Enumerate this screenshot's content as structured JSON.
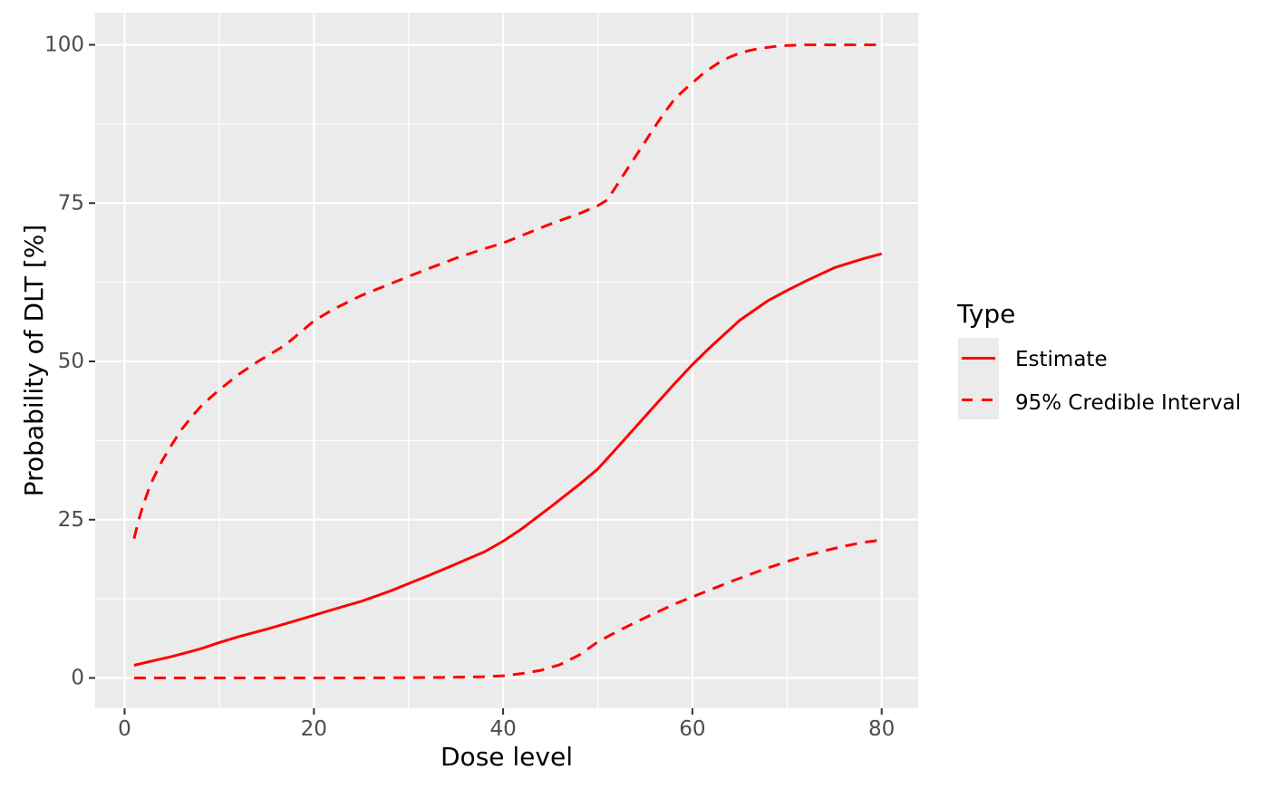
{
  "theme": {
    "background": "#FFFFFF",
    "panel_background": "#EBEBEB",
    "grid_color": "#FFFFFF",
    "tick_label_color": "#4D4D4D",
    "tick_mark_color": "#333333",
    "axis_title_color": "#000000",
    "legend_key_background": "#EBEBEB",
    "line_color": "#FF0000"
  },
  "chart_data": {
    "type": "line",
    "title": "",
    "xlabel": "Dose level",
    "ylabel": "Probability of DLT [%]",
    "xlim": [
      -3.11,
      83.86
    ],
    "ylim": [
      -4.79,
      105.08
    ],
    "x_ticks": {
      "values": [
        0,
        20,
        40,
        60,
        80
      ],
      "labels": [
        "0",
        "20",
        "40",
        "60",
        "80"
      ]
    },
    "y_ticks": {
      "values": [
        0,
        25,
        50,
        75,
        100
      ],
      "labels": [
        "0",
        "25",
        "50",
        "75",
        "100"
      ]
    },
    "x_minor": [
      10,
      30,
      50,
      70
    ],
    "y_minor": [
      12.5,
      37.5,
      62.5,
      87.5
    ],
    "grid": "white major and minor gridlines on gray panel",
    "legend": {
      "title": "Type",
      "position": "right-center",
      "entries": [
        {
          "label": "Estimate",
          "linestyle": "solid",
          "color": "#FF0000"
        },
        {
          "label": "95% Credible Interval",
          "linestyle": "dashed",
          "color": "#FF0000"
        }
      ]
    },
    "series": [
      {
        "name": "Estimate",
        "linestyle": "solid",
        "color": "#FF0000",
        "points": [
          [
            1,
            2.0
          ],
          [
            3,
            2.7
          ],
          [
            5,
            3.4
          ],
          [
            8,
            4.6
          ],
          [
            10,
            5.6
          ],
          [
            12,
            6.5
          ],
          [
            15,
            7.7
          ],
          [
            18,
            9.0
          ],
          [
            20,
            9.9
          ],
          [
            22,
            10.8
          ],
          [
            25,
            12.1
          ],
          [
            28,
            13.7
          ],
          [
            30,
            14.9
          ],
          [
            32,
            16.1
          ],
          [
            35,
            18.0
          ],
          [
            38,
            19.9
          ],
          [
            40,
            21.6
          ],
          [
            42,
            23.6
          ],
          [
            45,
            27.0
          ],
          [
            48,
            30.5
          ],
          [
            50,
            33.0
          ],
          [
            52,
            36.3
          ],
          [
            55,
            41.3
          ],
          [
            58,
            46.3
          ],
          [
            60,
            49.5
          ],
          [
            62,
            52.4
          ],
          [
            65,
            56.5
          ],
          [
            68,
            59.6
          ],
          [
            70,
            61.2
          ],
          [
            72,
            62.7
          ],
          [
            75,
            64.8
          ],
          [
            78,
            66.2
          ],
          [
            80,
            67.0
          ]
        ]
      },
      {
        "name": "95% Credible Interval (upper)",
        "linestyle": "dashed",
        "color": "#FF0000",
        "points": [
          [
            1,
            22.0
          ],
          [
            1.5,
            25.0
          ],
          [
            2,
            27.5
          ],
          [
            2.5,
            29.6
          ],
          [
            3,
            31.4
          ],
          [
            4,
            34.4
          ],
          [
            5,
            36.9
          ],
          [
            6,
            39.2
          ],
          [
            7,
            41.1
          ],
          [
            8,
            42.8
          ],
          [
            9,
            44.2
          ],
          [
            10,
            45.5
          ],
          [
            12,
            47.9
          ],
          [
            14,
            49.9
          ],
          [
            15,
            50.8
          ],
          [
            17,
            52.6
          ],
          [
            20,
            56.4
          ],
          [
            22,
            58.2
          ],
          [
            25,
            60.4
          ],
          [
            28,
            62.2
          ],
          [
            30,
            63.4
          ],
          [
            32,
            64.6
          ],
          [
            35,
            66.3
          ],
          [
            38,
            67.8
          ],
          [
            40,
            68.7
          ],
          [
            42,
            69.9
          ],
          [
            45,
            71.7
          ],
          [
            48,
            73.3
          ],
          [
            50,
            74.6
          ],
          [
            51,
            75.5
          ],
          [
            52,
            77.8
          ],
          [
            53,
            80.1
          ],
          [
            54,
            82.4
          ],
          [
            55,
            84.7
          ],
          [
            56,
            87.0
          ],
          [
            57,
            89.2
          ],
          [
            58,
            91.2
          ],
          [
            59,
            92.7
          ],
          [
            60,
            94.0
          ],
          [
            61,
            95.3
          ],
          [
            62,
            96.4
          ],
          [
            63,
            97.4
          ],
          [
            64,
            98.1
          ],
          [
            65,
            98.7
          ],
          [
            66,
            99.1
          ],
          [
            67,
            99.4
          ],
          [
            68,
            99.6
          ],
          [
            69,
            99.8
          ],
          [
            70,
            99.9
          ],
          [
            72,
            100.0
          ],
          [
            75,
            100.0
          ],
          [
            80,
            100.0
          ]
        ]
      },
      {
        "name": "95% Credible Interval (lower)",
        "linestyle": "dashed",
        "color": "#FF0000",
        "points": [
          [
            1,
            0.0
          ],
          [
            5,
            0.0
          ],
          [
            10,
            0.0
          ],
          [
            15,
            0.0
          ],
          [
            20,
            0.0
          ],
          [
            25,
            0.0
          ],
          [
            30,
            0.05
          ],
          [
            34,
            0.1
          ],
          [
            36,
            0.15
          ],
          [
            38,
            0.2
          ],
          [
            40,
            0.35
          ],
          [
            42,
            0.7
          ],
          [
            44,
            1.2
          ],
          [
            46,
            2.1
          ],
          [
            48,
            3.6
          ],
          [
            50,
            5.7
          ],
          [
            52,
            7.3
          ],
          [
            54,
            8.8
          ],
          [
            56,
            10.2
          ],
          [
            58,
            11.6
          ],
          [
            60,
            12.8
          ],
          [
            62,
            14.0
          ],
          [
            64,
            15.2
          ],
          [
            66,
            16.3
          ],
          [
            68,
            17.4
          ],
          [
            70,
            18.4
          ],
          [
            72,
            19.3
          ],
          [
            74,
            20.1
          ],
          [
            76,
            20.8
          ],
          [
            78,
            21.4
          ],
          [
            80,
            21.8
          ]
        ]
      }
    ]
  }
}
